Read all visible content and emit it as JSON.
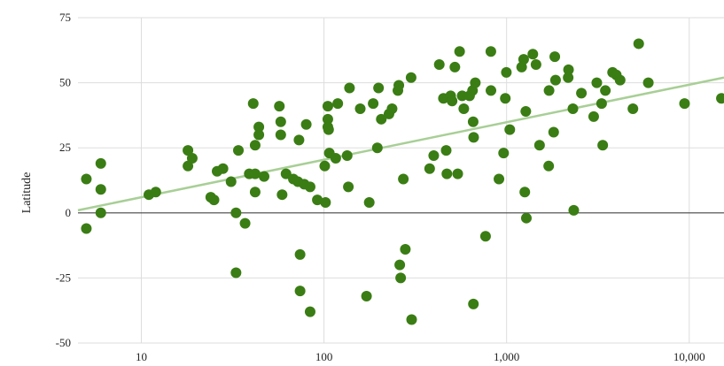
{
  "chart_data": {
    "type": "scatter",
    "title": "",
    "xlabel": "",
    "ylabel": "Latitude",
    "x_scale": "log",
    "xlim": [
      4.5,
      15500
    ],
    "ylim": [
      -50,
      75
    ],
    "x_ticks": [
      {
        "value": 10,
        "label": "10"
      },
      {
        "value": 100,
        "label": "100"
      },
      {
        "value": 1000,
        "label": "1,000"
      },
      {
        "value": 10000,
        "label": "10,000"
      }
    ],
    "y_ticks": [
      {
        "value": 75,
        "label": "75"
      },
      {
        "value": 50,
        "label": "50"
      },
      {
        "value": 25,
        "label": "25"
      },
      {
        "value": 0,
        "label": "0"
      },
      {
        "value": -25,
        "label": "-25"
      },
      {
        "value": -50,
        "label": "-50"
      }
    ],
    "grid": true,
    "zero_line": true,
    "colors": {
      "points": "#3a7d14",
      "trendline": "#a8cf96",
      "grid": "#dddddd",
      "zero_line": "#444444"
    },
    "trendline": {
      "x": [
        4.5,
        15500
      ],
      "y": [
        1,
        52
      ]
    },
    "series": [
      {
        "points": [
          [
            5,
            13
          ],
          [
            5,
            -6
          ],
          [
            6,
            19
          ],
          [
            6,
            9
          ],
          [
            6,
            0
          ],
          [
            11,
            7
          ],
          [
            12,
            8
          ],
          [
            18,
            24
          ],
          [
            18,
            18
          ],
          [
            19,
            21
          ],
          [
            24,
            6
          ],
          [
            25,
            5
          ],
          [
            26,
            16
          ],
          [
            28,
            17
          ],
          [
            31,
            12
          ],
          [
            33,
            0
          ],
          [
            33,
            -23
          ],
          [
            34,
            24
          ],
          [
            37,
            -4
          ],
          [
            39,
            15
          ],
          [
            41,
            42
          ],
          [
            42,
            26
          ],
          [
            42,
            15
          ],
          [
            42,
            8
          ],
          [
            44,
            30
          ],
          [
            44,
            33
          ],
          [
            47,
            14
          ],
          [
            57,
            41
          ],
          [
            58,
            35
          ],
          [
            58,
            30
          ],
          [
            59,
            7
          ],
          [
            62,
            15
          ],
          [
            68,
            13
          ],
          [
            72,
            12
          ],
          [
            73,
            28
          ],
          [
            74,
            -16
          ],
          [
            74,
            -30
          ],
          [
            78,
            11
          ],
          [
            80,
            34
          ],
          [
            84,
            10
          ],
          [
            84,
            -38
          ],
          [
            92,
            5
          ],
          [
            101,
            18
          ],
          [
            102,
            4
          ],
          [
            105,
            41
          ],
          [
            105,
            36
          ],
          [
            105,
            33
          ],
          [
            106,
            32
          ],
          [
            107,
            23
          ],
          [
            116,
            21
          ],
          [
            119,
            42
          ],
          [
            134,
            22
          ],
          [
            136,
            10
          ],
          [
            138,
            48
          ],
          [
            158,
            40
          ],
          [
            171,
            -32
          ],
          [
            177,
            4
          ],
          [
            186,
            42
          ],
          [
            196,
            25
          ],
          [
            199,
            48
          ],
          [
            206,
            36
          ],
          [
            227,
            38
          ],
          [
            236,
            40
          ],
          [
            254,
            47
          ],
          [
            257,
            49
          ],
          [
            260,
            -20
          ],
          [
            263,
            -25
          ],
          [
            272,
            13
          ],
          [
            279,
            -14
          ],
          [
            300,
            52
          ],
          [
            302,
            -41
          ],
          [
            379,
            17
          ],
          [
            399,
            22
          ],
          [
            428,
            57
          ],
          [
            451,
            44
          ],
          [
            467,
            24
          ],
          [
            471,
            15
          ],
          [
            494,
            45
          ],
          [
            503,
            43
          ],
          [
            521,
            56
          ],
          [
            540,
            15
          ],
          [
            553,
            62
          ],
          [
            571,
            45
          ],
          [
            583,
            40
          ],
          [
            627,
            45
          ],
          [
            651,
            47
          ],
          [
            656,
            35
          ],
          [
            658,
            -35
          ],
          [
            660,
            29
          ],
          [
            674,
            50
          ],
          [
            767,
            -9
          ],
          [
            820,
            62
          ],
          [
            821,
            47
          ],
          [
            908,
            13
          ],
          [
            963,
            23
          ],
          [
            984,
            44
          ],
          [
            997,
            54
          ],
          [
            1041,
            32
          ],
          [
            1209,
            56
          ],
          [
            1240,
            59
          ],
          [
            1258,
            8
          ],
          [
            1274,
            39
          ],
          [
            1283,
            -2
          ],
          [
            1392,
            61
          ],
          [
            1449,
            57
          ],
          [
            1515,
            26
          ],
          [
            1700,
            18
          ],
          [
            1708,
            47
          ],
          [
            1810,
            31
          ],
          [
            1836,
            60
          ],
          [
            1854,
            51
          ],
          [
            2173,
            52
          ],
          [
            2183,
            55
          ],
          [
            2307,
            40
          ],
          [
            2332,
            1
          ],
          [
            2568,
            46
          ],
          [
            2998,
            37
          ],
          [
            3118,
            50
          ],
          [
            3313,
            42
          ],
          [
            3360,
            26
          ],
          [
            3474,
            47
          ],
          [
            3804,
            54
          ],
          [
            3986,
            53
          ],
          [
            4184,
            51
          ],
          [
            4916,
            40
          ],
          [
            5287,
            65
          ],
          [
            5969,
            50
          ],
          [
            9426,
            42
          ],
          [
            15000,
            44
          ]
        ]
      }
    ]
  }
}
